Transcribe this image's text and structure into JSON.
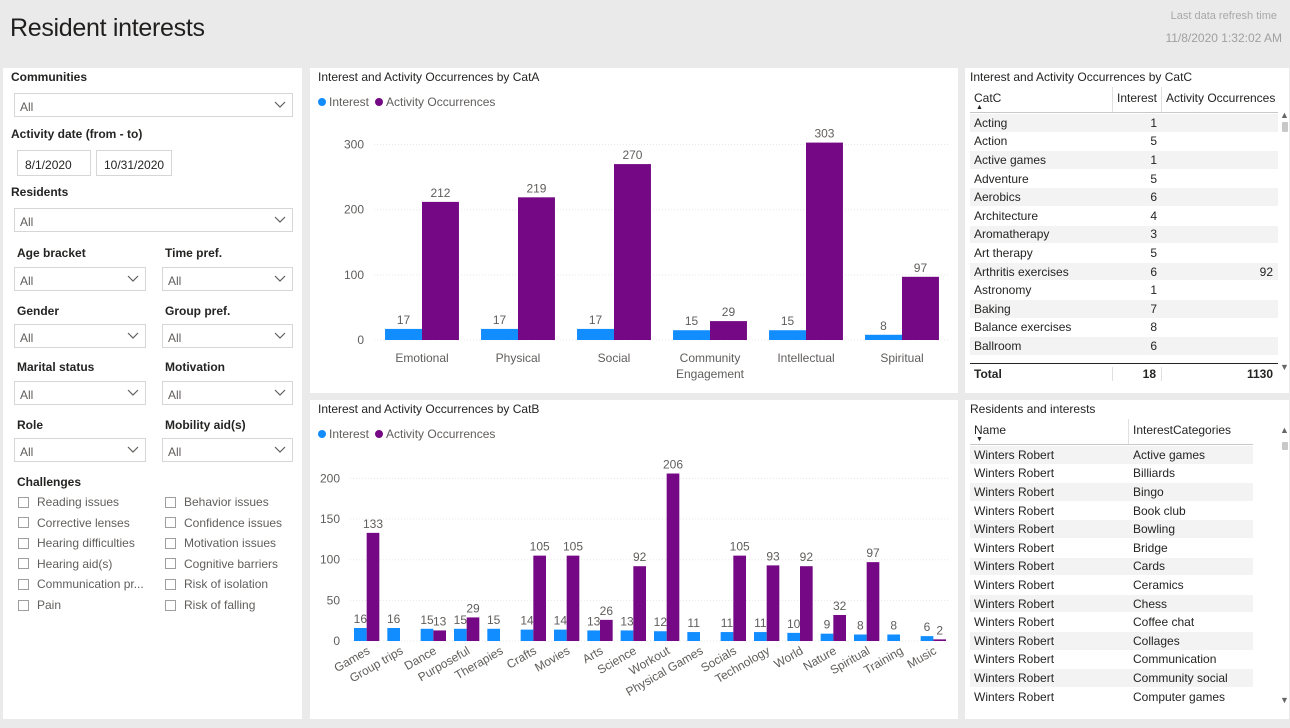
{
  "header": {
    "title": "Resident interests",
    "refresh_label": "Last data refresh time",
    "refresh_value": "11/8/2020 1:32:02 AM"
  },
  "filters": {
    "communities": {
      "label": "Communities",
      "value": "All"
    },
    "activity_date": {
      "label": "Activity date (from - to)",
      "from": "8/1/2020",
      "to": "10/31/2020"
    },
    "residents": {
      "label": "Residents",
      "value": "All"
    },
    "age_bracket": {
      "label": "Age bracket",
      "value": "All"
    },
    "time_pref": {
      "label": "Time pref.",
      "value": "All"
    },
    "gender": {
      "label": "Gender",
      "value": "All"
    },
    "group_pref": {
      "label": "Group pref.",
      "value": "All"
    },
    "marital_status": {
      "label": "Marital status",
      "value": "All"
    },
    "motivation": {
      "label": "Motivation",
      "value": "All"
    },
    "role": {
      "label": "Role",
      "value": "All"
    },
    "mobility_aid": {
      "label": "Mobility aid(s)",
      "value": "All"
    },
    "challenges": {
      "label": "Challenges",
      "left": [
        "Reading issues",
        "Corrective lenses",
        "Hearing difficulties",
        "Hearing aid(s)",
        "Communication pr...",
        "Pain"
      ],
      "right": [
        "Behavior issues",
        "Confidence issues",
        "Motivation issues",
        "Cognitive barriers",
        "Risk of isolation",
        "Risk of falling"
      ]
    }
  },
  "colors": {
    "interest": "#118dff",
    "activity": "#750985"
  },
  "chart_data": [
    {
      "type": "bar",
      "title": "Interest and Activity Occurrences by CatA",
      "legend": [
        "Interest",
        "Activity Occurrences"
      ],
      "categories": [
        "Emotional",
        "Physical",
        "Social",
        "Community Engagement",
        "Intellectual",
        "Spiritual"
      ],
      "category_lines": [
        [
          "Emotional"
        ],
        [
          "Physical"
        ],
        [
          "Social"
        ],
        [
          "Community",
          "Engagement"
        ],
        [
          "Intellectual"
        ],
        [
          "Spiritual"
        ]
      ],
      "series": [
        {
          "name": "Interest",
          "values": [
            17,
            17,
            17,
            15,
            15,
            8
          ]
        },
        {
          "name": "Activity Occurrences",
          "values": [
            212,
            219,
            270,
            29,
            303,
            97
          ]
        }
      ],
      "yticks": [
        0,
        100,
        200,
        300
      ],
      "ylim": [
        0,
        330
      ]
    },
    {
      "type": "bar",
      "title": "Interest and Activity Occurrences by CatB",
      "legend": [
        "Interest",
        "Activity Occurrences"
      ],
      "categories": [
        "Games",
        "Group trips",
        "Dance",
        "Purposeful",
        "Therapies",
        "Crafts",
        "Movies",
        "Arts",
        "Science",
        "Workout",
        "Physical Games",
        "Socials",
        "Technology",
        "World",
        "Nature",
        "Spiritual",
        "Training",
        "Music"
      ],
      "series": [
        {
          "name": "Interest",
          "values": [
            16,
            16,
            15,
            15,
            15,
            14,
            14,
            13,
            13,
            12,
            11,
            11,
            11,
            10,
            9,
            8,
            8,
            6
          ]
        },
        {
          "name": "Activity Occurrences",
          "values": [
            133,
            null,
            13,
            29,
            null,
            105,
            105,
            26,
            92,
            206,
            null,
            105,
            93,
            92,
            32,
            97,
            null,
            2
          ]
        }
      ],
      "yticks": [
        0,
        50,
        100,
        150,
        200
      ],
      "ylim": [
        0,
        230
      ]
    }
  ],
  "catc_table": {
    "title": "Interest and Activity Occurrences by CatC",
    "columns": [
      "CatC",
      "Interest",
      "Activity Occurrences"
    ],
    "rows": [
      [
        "Acting",
        "1",
        ""
      ],
      [
        "Action",
        "5",
        ""
      ],
      [
        "Active games",
        "1",
        ""
      ],
      [
        "Adventure",
        "5",
        ""
      ],
      [
        "Aerobics",
        "6",
        ""
      ],
      [
        "Architecture",
        "4",
        ""
      ],
      [
        "Aromatherapy",
        "3",
        ""
      ],
      [
        "Art therapy",
        "5",
        ""
      ],
      [
        "Arthritis exercises",
        "6",
        "92"
      ],
      [
        "Astronomy",
        "1",
        ""
      ],
      [
        "Baking",
        "7",
        ""
      ],
      [
        "Balance exercises",
        "8",
        ""
      ],
      [
        "Ballroom",
        "6",
        ""
      ]
    ],
    "total": [
      "Total",
      "18",
      "1130"
    ]
  },
  "residents_table": {
    "title": "Residents and interests",
    "columns": [
      "Name",
      "InterestCategories"
    ],
    "rows": [
      [
        "Winters Robert",
        "Active games"
      ],
      [
        "Winters Robert",
        "Billiards"
      ],
      [
        "Winters Robert",
        "Bingo"
      ],
      [
        "Winters Robert",
        "Book club"
      ],
      [
        "Winters Robert",
        "Bowling"
      ],
      [
        "Winters Robert",
        "Bridge"
      ],
      [
        "Winters Robert",
        "Cards"
      ],
      [
        "Winters Robert",
        "Ceramics"
      ],
      [
        "Winters Robert",
        "Chess"
      ],
      [
        "Winters Robert",
        "Coffee chat"
      ],
      [
        "Winters Robert",
        "Collages"
      ],
      [
        "Winters Robert",
        "Communication"
      ],
      [
        "Winters Robert",
        "Community social"
      ],
      [
        "Winters Robert",
        "Computer games"
      ]
    ]
  }
}
